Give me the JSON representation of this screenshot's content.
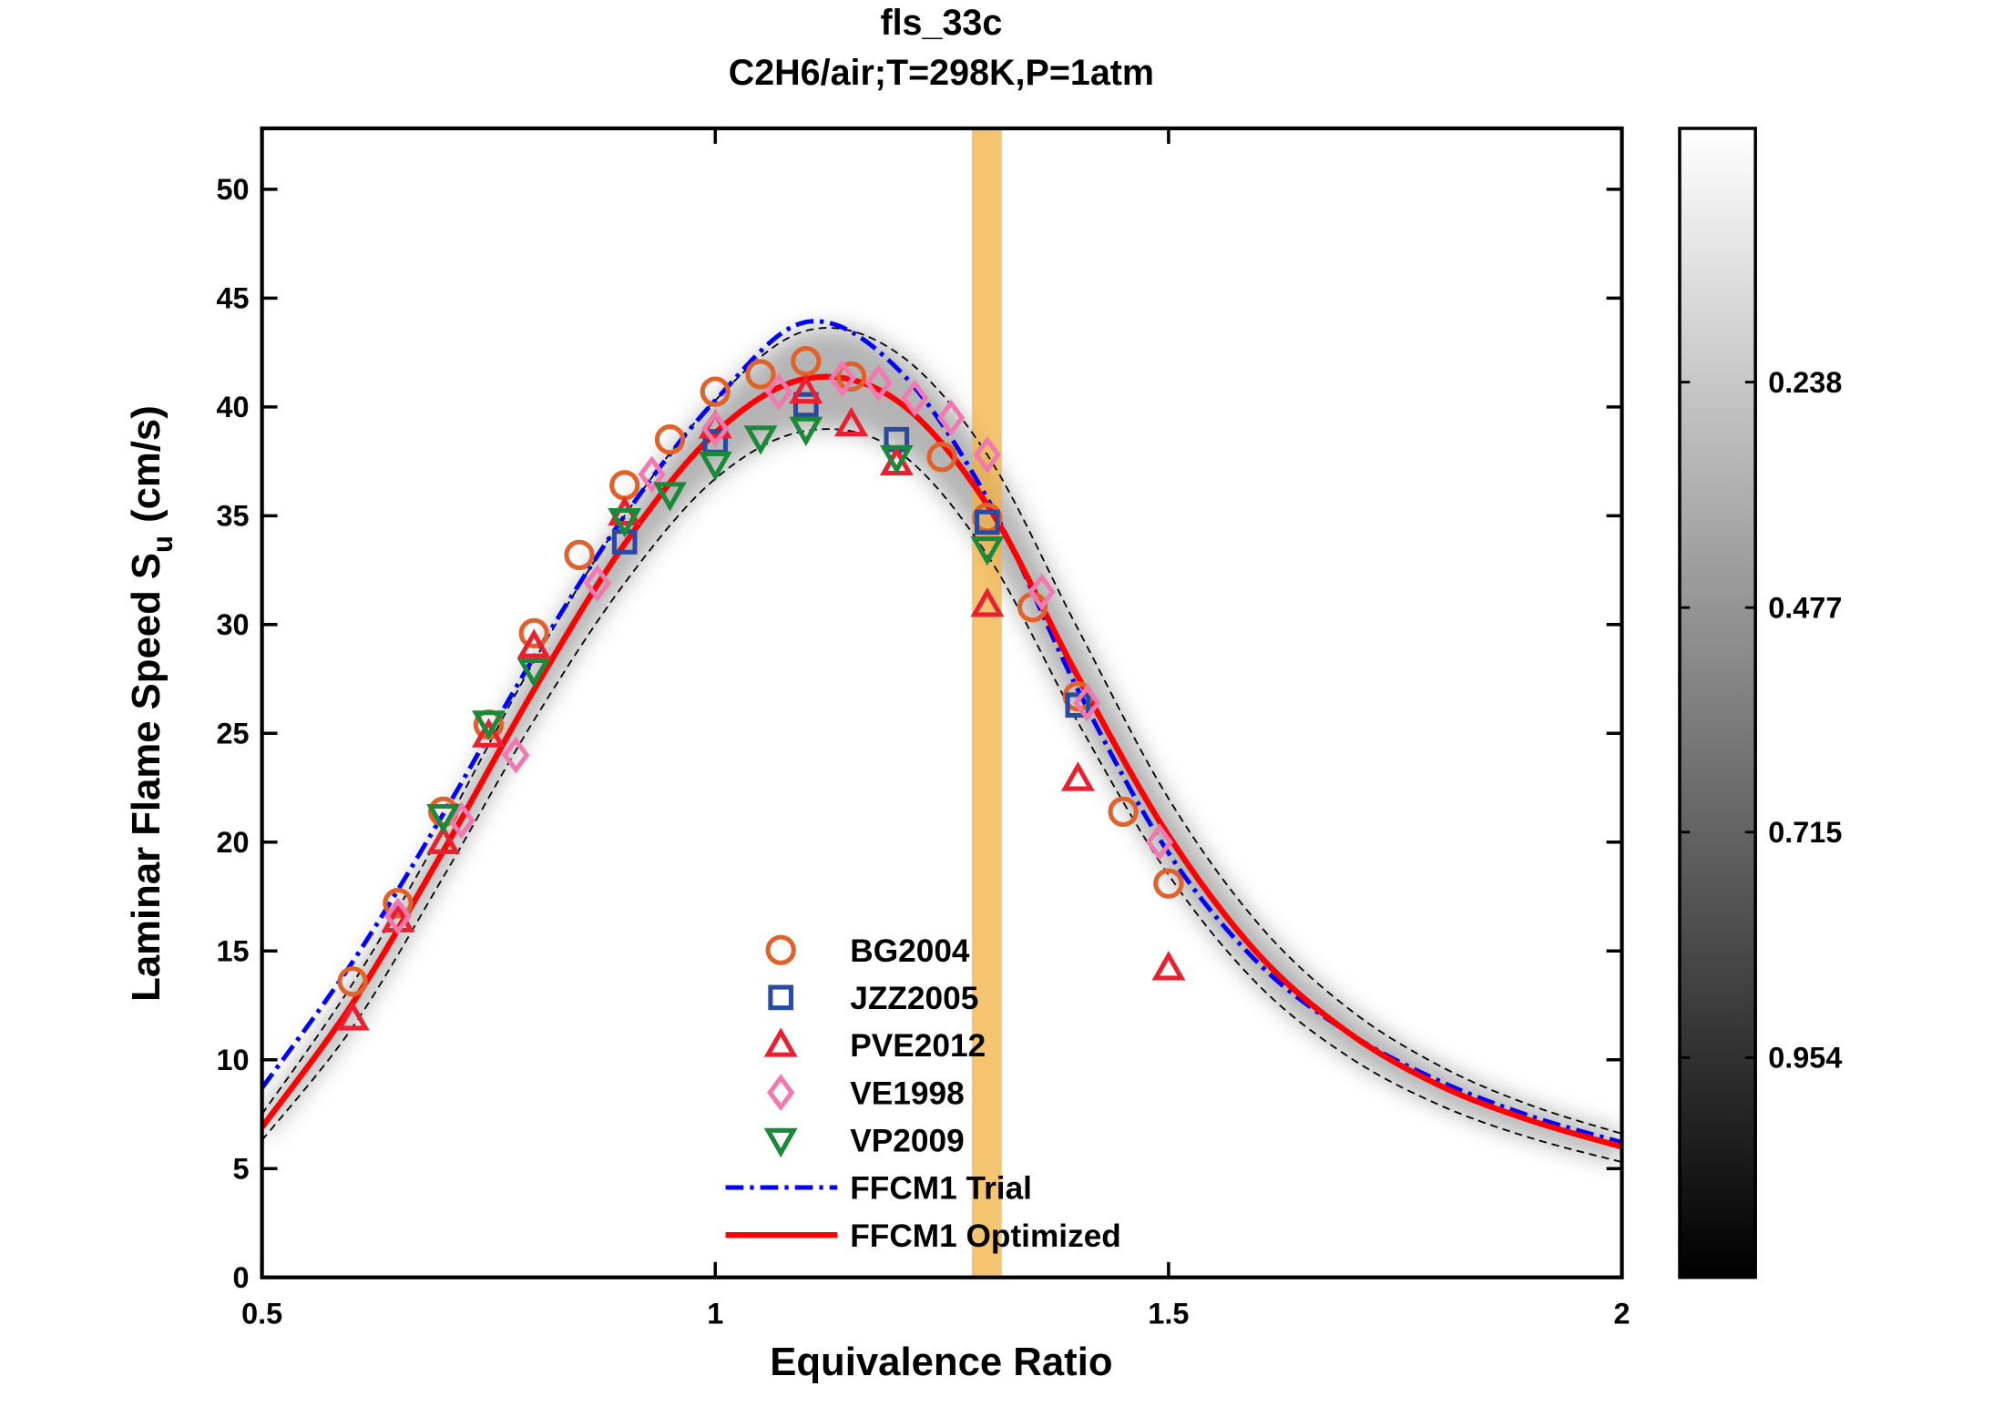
{
  "chart_data": {
    "type": "line",
    "title": [
      "fls_33c",
      "C2H6/air;T=298K,P=1atm"
    ],
    "xlabel": "Equivalence Ratio",
    "ylabel": [
      "Laminar Flame Speed S",
      "u",
      "(cm/s)"
    ],
    "xlim": [
      0.5,
      2
    ],
    "xticks": [
      0.5,
      1,
      1.5,
      2
    ],
    "ylim": [
      0,
      52.8
    ],
    "yticks": [
      0,
      5,
      10,
      15,
      20,
      25,
      30,
      35,
      40,
      45,
      50
    ],
    "band": {
      "x": [
        1.283,
        1.316
      ],
      "color": "#f0b040"
    },
    "colorbar": {
      "clim": [
        1.187,
        -0.031
      ],
      "ticks": [
        0.238,
        0.477,
        0.715,
        0.954
      ]
    },
    "series": [
      {
        "style": "dashed",
        "color": "#000000",
        "x": [
          0.5,
          0.6,
          0.7,
          0.8,
          0.9,
          1.0,
          1.1,
          1.2,
          1.3,
          1.4,
          1.5,
          1.6,
          1.7,
          1.8,
          1.9,
          2.0
        ],
        "values": [
          7.5,
          13.5,
          20.6,
          28.3,
          35.0,
          40.3,
          43.5,
          42.5,
          37.8,
          29.8,
          22.0,
          16.2,
          12.3,
          9.7,
          7.9,
          6.6
        ]
      },
      {
        "style": "dashed",
        "color": "#000000",
        "x": [
          0.5,
          0.6,
          0.7,
          0.8,
          0.9,
          1.0,
          1.1,
          1.2,
          1.3,
          1.4,
          1.5,
          1.6,
          1.7,
          1.8,
          1.9,
          2.0
        ],
        "values": [
          6.3,
          11.5,
          18.4,
          25.6,
          31.9,
          36.7,
          38.9,
          38.0,
          33.2,
          25.5,
          18.5,
          13.4,
          10.1,
          7.9,
          6.4,
          5.3
        ]
      },
      {
        "name": "FFCM1 Trial",
        "style": "dashdot",
        "color": "#0000ff",
        "x": [
          0.5,
          0.6,
          0.7,
          0.8,
          0.9,
          1.0,
          1.1,
          1.2,
          1.3,
          1.4,
          1.5,
          1.6,
          1.7,
          1.8,
          1.9,
          2.0
        ],
        "values": [
          8.7,
          14.5,
          21.3,
          28.5,
          35.0,
          40.3,
          43.9,
          41.8,
          35.8,
          27.0,
          19.5,
          14.4,
          11.2,
          9.0,
          7.4,
          6.2
        ]
      },
      {
        "name": "FFCM1 Optimized",
        "style": "solid",
        "color": "#ff0000",
        "x": [
          0.5,
          0.6,
          0.7,
          0.8,
          0.9,
          1.0,
          1.1,
          1.2,
          1.3,
          1.4,
          1.5,
          1.6,
          1.7,
          1.8,
          1.9,
          2.0
        ],
        "values": [
          6.9,
          12.6,
          19.6,
          27.0,
          33.7,
          38.8,
          41.3,
          40.3,
          35.5,
          27.6,
          20.3,
          14.8,
          11.2,
          8.8,
          7.2,
          6.0
        ]
      },
      {
        "name": "BG2004",
        "marker": "circle",
        "color": "#e0622a",
        "x": [
          0.6,
          0.65,
          0.7,
          0.75,
          0.8,
          0.85,
          0.9,
          0.95,
          1.0,
          1.05,
          1.1,
          1.15,
          1.25,
          1.3,
          1.35,
          1.4,
          1.45,
          1.5
        ],
        "values": [
          13.6,
          17.2,
          21.4,
          25.4,
          29.6,
          33.2,
          36.4,
          38.5,
          40.7,
          41.5,
          42.1,
          41.4,
          37.7,
          34.9,
          30.8,
          26.7,
          21.4,
          18.1
        ]
      },
      {
        "name": "JZZ2005",
        "marker": "square",
        "color": "#2a4aa0",
        "x": [
          0.9,
          1.0,
          1.1,
          1.2,
          1.3,
          1.4
        ],
        "values": [
          33.8,
          38.4,
          40.1,
          38.5,
          34.7,
          26.3
        ]
      },
      {
        "name": "PVE2012",
        "marker": "triangle",
        "color": "#e82030",
        "x": [
          0.6,
          0.65,
          0.7,
          0.75,
          0.8,
          0.9,
          1.0,
          1.1,
          1.15,
          1.2,
          1.3,
          1.4,
          1.5
        ],
        "values": [
          11.9,
          16.4,
          20.0,
          24.9,
          29.0,
          35.1,
          39.1,
          40.7,
          39.2,
          37.4,
          30.9,
          22.9,
          14.2
        ]
      },
      {
        "name": "VE1998",
        "marker": "diamond",
        "color": "#f07ab0",
        "x": [
          0.65,
          0.72,
          0.78,
          0.87,
          0.93,
          1.0,
          1.07,
          1.14,
          1.18,
          1.22,
          1.26,
          1.3,
          1.36,
          1.41,
          1.49
        ],
        "values": [
          16.6,
          21.0,
          24.0,
          31.9,
          36.9,
          39.0,
          40.7,
          41.3,
          41.1,
          40.4,
          39.5,
          37.8,
          31.5,
          26.4,
          20.0
        ]
      },
      {
        "name": "VP2009",
        "marker": "triangle-down",
        "color": "#1a8a3a",
        "x": [
          0.7,
          0.75,
          0.8,
          0.9,
          0.95,
          1.0,
          1.05,
          1.1,
          1.2,
          1.3
        ],
        "values": [
          21.2,
          25.5,
          27.9,
          34.8,
          36.0,
          37.4,
          38.6,
          39.0,
          37.7,
          33.5
        ]
      }
    ]
  }
}
